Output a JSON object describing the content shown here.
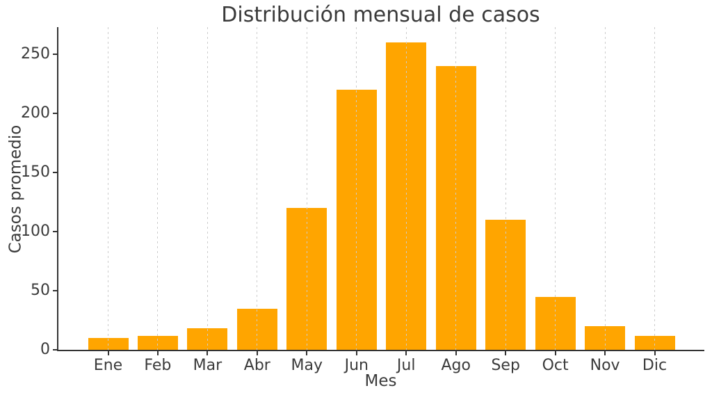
{
  "chart_data": {
    "type": "bar",
    "title": "Distribución mensual de casos",
    "xlabel": "Mes",
    "ylabel": "Casos promedio",
    "categories": [
      "Ene",
      "Feb",
      "Mar",
      "Abr",
      "May",
      "Jun",
      "Jul",
      "Ago",
      "Sep",
      "Oct",
      "Nov",
      "Dic"
    ],
    "values": [
      10,
      12,
      18,
      35,
      120,
      220,
      260,
      240,
      110,
      45,
      20,
      12
    ],
    "yticks": [
      0,
      50,
      100,
      150,
      200,
      250
    ],
    "ylim": [
      0,
      273
    ],
    "grid": "vertical-dashed",
    "legend": "none",
    "bar_color": "#FFA500",
    "grid_color": "#cccccc",
    "axis_color": "#333333",
    "text_color": "#3a3a3a"
  }
}
